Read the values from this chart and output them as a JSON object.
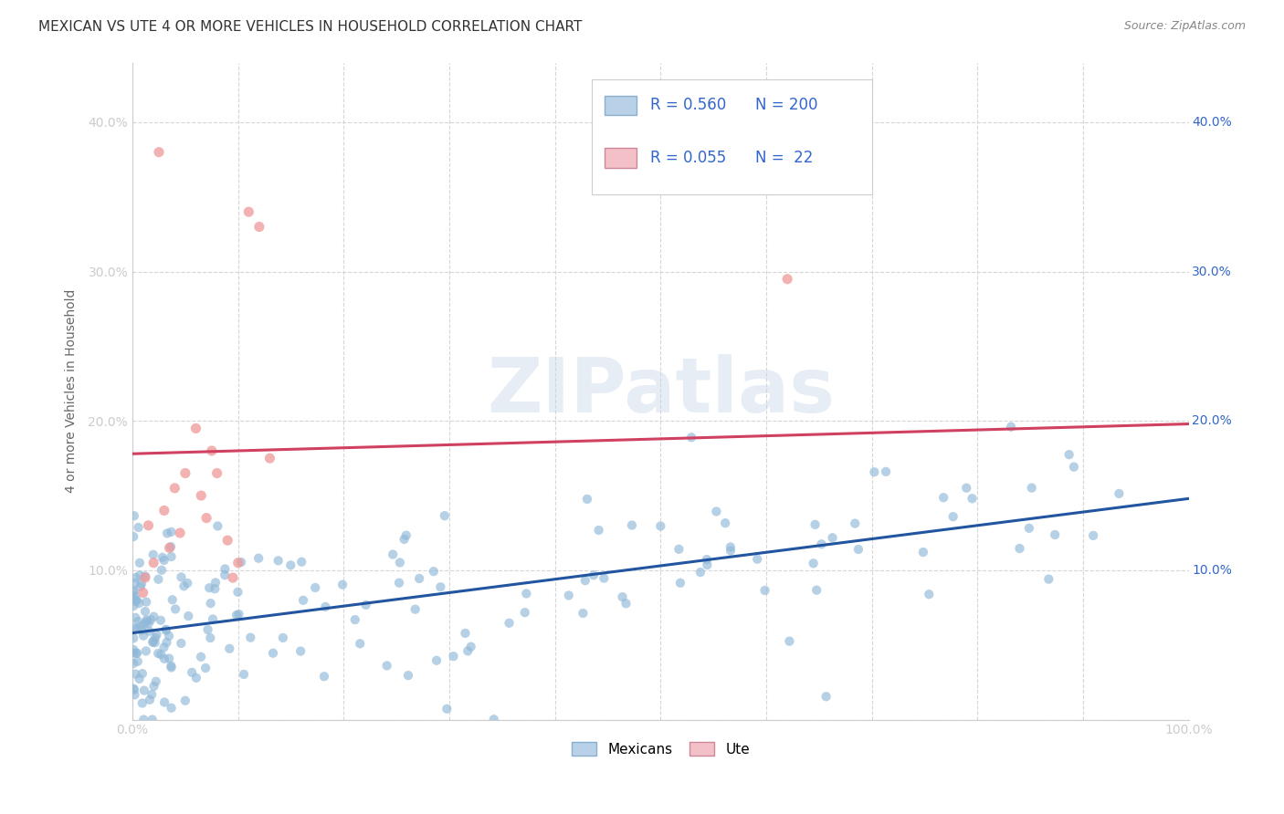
{
  "title": "MEXICAN VS UTE 4 OR MORE VEHICLES IN HOUSEHOLD CORRELATION CHART",
  "source": "Source: ZipAtlas.com",
  "ylabel": "4 or more Vehicles in Household",
  "watermark": "ZIPatlas",
  "blue_R": 0.56,
  "blue_N": 200,
  "pink_R": 0.055,
  "pink_N": 22,
  "blue_legend_color": "#b8d0e8",
  "pink_legend_color": "#f4c0c8",
  "blue_scatter_color": "#90b8d8",
  "pink_scatter_color": "#f09898",
  "blue_line_color": "#2255a0",
  "pink_line_color": "#d04060",
  "legend_text_color": "#3366cc",
  "xlim": [
    0.0,
    1.0
  ],
  "ylim": [
    0.0,
    0.44
  ],
  "x_ticks": [
    0.0,
    0.1,
    0.2,
    0.3,
    0.4,
    0.5,
    0.6,
    0.7,
    0.8,
    0.9,
    1.0
  ],
  "x_tick_labels": [
    "0.0%",
    "",
    "",
    "",
    "",
    "",
    "",
    "",
    "",
    "",
    "100.0%"
  ],
  "y_ticks": [
    0.0,
    0.1,
    0.2,
    0.3,
    0.4
  ],
  "y_tick_labels": [
    "",
    "10.0%",
    "20.0%",
    "30.0%",
    "40.0%"
  ],
  "grid_color": "#cccccc",
  "background_color": "#ffffff",
  "title_fontsize": 11,
  "axis_label_fontsize": 10,
  "tick_fontsize": 10,
  "legend_fontsize": 12,
  "seed": 42,
  "blue_line_start_y": 0.058,
  "blue_line_end_y": 0.148,
  "pink_line_start_y": 0.178,
  "pink_line_end_y": 0.198
}
